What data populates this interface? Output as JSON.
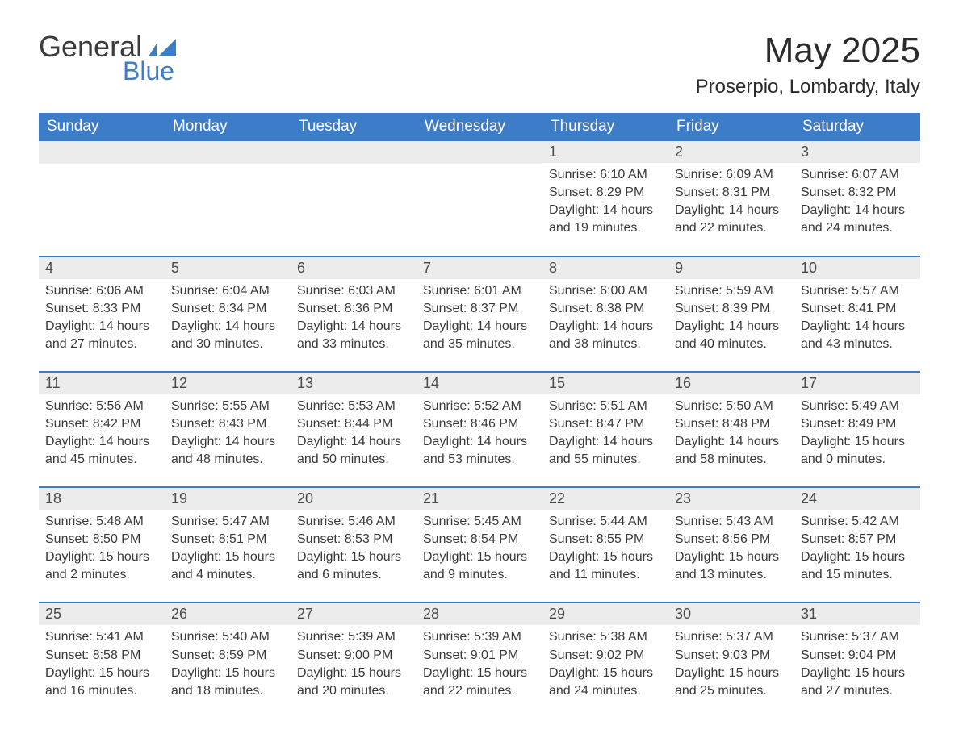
{
  "brand": {
    "name_part1": "General",
    "name_part2": "Blue",
    "mark_color": "#3d7cc9",
    "text_color": "#3b3b3b"
  },
  "header": {
    "month_title": "May 2025",
    "location": "Proserpio, Lombardy, Italy"
  },
  "colors": {
    "header_bg": "#3d7cc9",
    "header_text": "#ffffff",
    "daynum_bg": "#ececec",
    "daynum_text": "#4a4a4a",
    "body_text": "#3a3a3a",
    "rule": "#3d7cc9",
    "page_bg": "#ffffff"
  },
  "layout": {
    "columns": 7,
    "rows": 5,
    "first_weekday_index": 4,
    "title_fontsize": 44,
    "location_fontsize": 24,
    "dayhead_fontsize": 19,
    "daynum_fontsize": 18,
    "body_fontsize": 16
  },
  "day_headers": [
    "Sunday",
    "Monday",
    "Tuesday",
    "Wednesday",
    "Thursday",
    "Friday",
    "Saturday"
  ],
  "labels": {
    "sunrise": "Sunrise",
    "sunset": "Sunset",
    "daylight": "Daylight"
  },
  "days": [
    {
      "n": 1,
      "sunrise": "6:10 AM",
      "sunset": "8:29 PM",
      "daylight": "14 hours and 19 minutes."
    },
    {
      "n": 2,
      "sunrise": "6:09 AM",
      "sunset": "8:31 PM",
      "daylight": "14 hours and 22 minutes."
    },
    {
      "n": 3,
      "sunrise": "6:07 AM",
      "sunset": "8:32 PM",
      "daylight": "14 hours and 24 minutes."
    },
    {
      "n": 4,
      "sunrise": "6:06 AM",
      "sunset": "8:33 PM",
      "daylight": "14 hours and 27 minutes."
    },
    {
      "n": 5,
      "sunrise": "6:04 AM",
      "sunset": "8:34 PM",
      "daylight": "14 hours and 30 minutes."
    },
    {
      "n": 6,
      "sunrise": "6:03 AM",
      "sunset": "8:36 PM",
      "daylight": "14 hours and 33 minutes."
    },
    {
      "n": 7,
      "sunrise": "6:01 AM",
      "sunset": "8:37 PM",
      "daylight": "14 hours and 35 minutes."
    },
    {
      "n": 8,
      "sunrise": "6:00 AM",
      "sunset": "8:38 PM",
      "daylight": "14 hours and 38 minutes."
    },
    {
      "n": 9,
      "sunrise": "5:59 AM",
      "sunset": "8:39 PM",
      "daylight": "14 hours and 40 minutes."
    },
    {
      "n": 10,
      "sunrise": "5:57 AM",
      "sunset": "8:41 PM",
      "daylight": "14 hours and 43 minutes."
    },
    {
      "n": 11,
      "sunrise": "5:56 AM",
      "sunset": "8:42 PM",
      "daylight": "14 hours and 45 minutes."
    },
    {
      "n": 12,
      "sunrise": "5:55 AM",
      "sunset": "8:43 PM",
      "daylight": "14 hours and 48 minutes."
    },
    {
      "n": 13,
      "sunrise": "5:53 AM",
      "sunset": "8:44 PM",
      "daylight": "14 hours and 50 minutes."
    },
    {
      "n": 14,
      "sunrise": "5:52 AM",
      "sunset": "8:46 PM",
      "daylight": "14 hours and 53 minutes."
    },
    {
      "n": 15,
      "sunrise": "5:51 AM",
      "sunset": "8:47 PM",
      "daylight": "14 hours and 55 minutes."
    },
    {
      "n": 16,
      "sunrise": "5:50 AM",
      "sunset": "8:48 PM",
      "daylight": "14 hours and 58 minutes."
    },
    {
      "n": 17,
      "sunrise": "5:49 AM",
      "sunset": "8:49 PM",
      "daylight": "15 hours and 0 minutes."
    },
    {
      "n": 18,
      "sunrise": "5:48 AM",
      "sunset": "8:50 PM",
      "daylight": "15 hours and 2 minutes."
    },
    {
      "n": 19,
      "sunrise": "5:47 AM",
      "sunset": "8:51 PM",
      "daylight": "15 hours and 4 minutes."
    },
    {
      "n": 20,
      "sunrise": "5:46 AM",
      "sunset": "8:53 PM",
      "daylight": "15 hours and 6 minutes."
    },
    {
      "n": 21,
      "sunrise": "5:45 AM",
      "sunset": "8:54 PM",
      "daylight": "15 hours and 9 minutes."
    },
    {
      "n": 22,
      "sunrise": "5:44 AM",
      "sunset": "8:55 PM",
      "daylight": "15 hours and 11 minutes."
    },
    {
      "n": 23,
      "sunrise": "5:43 AM",
      "sunset": "8:56 PM",
      "daylight": "15 hours and 13 minutes."
    },
    {
      "n": 24,
      "sunrise": "5:42 AM",
      "sunset": "8:57 PM",
      "daylight": "15 hours and 15 minutes."
    },
    {
      "n": 25,
      "sunrise": "5:41 AM",
      "sunset": "8:58 PM",
      "daylight": "15 hours and 16 minutes."
    },
    {
      "n": 26,
      "sunrise": "5:40 AM",
      "sunset": "8:59 PM",
      "daylight": "15 hours and 18 minutes."
    },
    {
      "n": 27,
      "sunrise": "5:39 AM",
      "sunset": "9:00 PM",
      "daylight": "15 hours and 20 minutes."
    },
    {
      "n": 28,
      "sunrise": "5:39 AM",
      "sunset": "9:01 PM",
      "daylight": "15 hours and 22 minutes."
    },
    {
      "n": 29,
      "sunrise": "5:38 AM",
      "sunset": "9:02 PM",
      "daylight": "15 hours and 24 minutes."
    },
    {
      "n": 30,
      "sunrise": "5:37 AM",
      "sunset": "9:03 PM",
      "daylight": "15 hours and 25 minutes."
    },
    {
      "n": 31,
      "sunrise": "5:37 AM",
      "sunset": "9:04 PM",
      "daylight": "15 hours and 27 minutes."
    }
  ]
}
